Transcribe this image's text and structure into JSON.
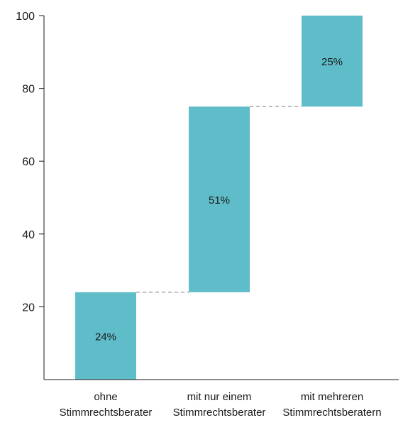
{
  "chart_data": {
    "type": "bar",
    "subtype": "waterfall",
    "title": "",
    "xlabel": "",
    "ylabel": "",
    "ylim": [
      0,
      100
    ],
    "yticks": [
      20,
      40,
      60,
      80,
      100
    ],
    "grid": false,
    "categories": [
      [
        "ohne",
        "Stimmrechtsberater"
      ],
      [
        "mit nur einem",
        "Stimmrechtsberater"
      ],
      [
        "mit mehreren",
        "Stimmrechtsberatern"
      ]
    ],
    "series": [
      {
        "values": [
          24,
          51,
          25
        ],
        "starts": [
          0,
          24,
          75
        ],
        "labels": [
          "24%",
          "51%",
          "25%"
        ]
      }
    ],
    "colors": {
      "bar": "#5fbdc9",
      "connector": "#9a9a9a",
      "axis": "#1a1a1a"
    },
    "connectors": true
  }
}
